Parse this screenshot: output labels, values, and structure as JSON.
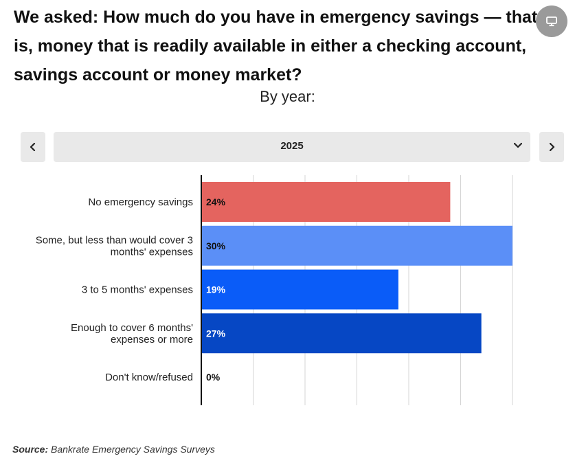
{
  "header": {
    "title": "We asked: How much do you have in emergency savings — that is, money that is readily available in either a checking account, savings account or money market?",
    "subtitle": "By year:"
  },
  "controls": {
    "selected_year": "2025",
    "prev_icon": "chevron-left-icon",
    "next_icon": "chevron-right-icon",
    "dropdown_icon": "chevron-down-icon",
    "floating_icon": "monitor-icon"
  },
  "colors": {
    "series": [
      "#e4645f",
      "#5b8ff7",
      "#0a5cf8",
      "#0647c4",
      "#0647c4"
    ],
    "axis": "#111111",
    "grid": "#d4d4d4"
  },
  "chart_data": {
    "type": "bar",
    "orientation": "horizontal",
    "categories": [
      "No emergency savings",
      "Some, but less than would cover 3 months' expenses",
      "3 to 5 months' expenses",
      "Enough to cover 6 months' expenses or more",
      "Don't know/refused"
    ],
    "category_lines": [
      [
        "No emergency savings"
      ],
      [
        "Some, but less than would cover 3",
        "months' expenses"
      ],
      [
        "3 to 5 months' expenses"
      ],
      [
        "Enough to cover 6 months'",
        "expenses or more"
      ],
      [
        "Don't know/refused"
      ]
    ],
    "values": [
      24,
      30,
      19,
      27,
      0
    ],
    "labels": [
      "24%",
      "30%",
      "19%",
      "27%",
      "0%"
    ],
    "xlim": [
      0,
      30
    ],
    "grid": true
  },
  "footer": {
    "source_label": "Source:",
    "source_text": "Bankrate Emergency Savings Surveys"
  }
}
